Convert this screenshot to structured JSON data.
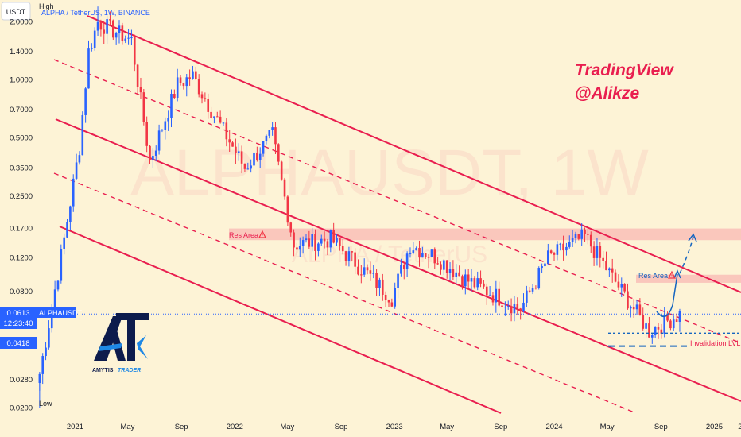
{
  "header": {
    "currency_badge": "USDT",
    "symbol_line": "ALPHA / TetherUS, 1W, BINANCE",
    "high_label": "High",
    "low_label": "Low"
  },
  "watermark": {
    "text": "ALPHAUSDT, 1W",
    "sub_text": "ALPHA / TetherUS"
  },
  "branding": {
    "line1": "TradingView",
    "line2": "@Alikze",
    "logo_letters": "AT",
    "logo_caption_1": "AMYTIS",
    "logo_caption_2": "TRADER"
  },
  "price_panel": {
    "last_price": "0.0613",
    "countdown": "12:23:40",
    "symbol_tag": "ALPHAUSDT",
    "support_price": "0.0418"
  },
  "annotations": {
    "res_area_left": "Res Area",
    "res_area_right": "Res Area",
    "invalidation": "Invalidation LVL"
  },
  "colors": {
    "background": "#fdf3d6",
    "bull": "#2962ff",
    "bear": "#f23645",
    "channel": "#e91e4f",
    "res_zone": "#f7a3a8",
    "branding": "#e91e4f",
    "projection": "#1565c0"
  },
  "chart_data": {
    "type": "candlestick",
    "title": "ALPHA / TetherUS, 1W, BINANCE",
    "y_scale": "log",
    "y_ticks": [
      "2.0000",
      "1.4000",
      "1.0000",
      "0.7000",
      "0.5000",
      "0.3500",
      "0.2500",
      "0.1700",
      "0.1200",
      "0.0800",
      "0.0613",
      "0.0418",
      "0.0280",
      "0.0200"
    ],
    "x_ticks": [
      "2021",
      "May",
      "Sep",
      "2022",
      "May",
      "Sep",
      "2023",
      "May",
      "Sep",
      "2024",
      "May",
      "Sep",
      "2025",
      "2"
    ],
    "x_range": [
      "2020-10-05",
      "2025-03-03"
    ],
    "ylim": [
      0.0188,
      2.45
    ],
    "last_price": 0.0613,
    "resistance_zones": [
      {
        "label": "Res Area",
        "from": 0.148,
        "to": 0.17
      },
      {
        "label": "Res Area",
        "from": 0.089,
        "to": 0.098
      }
    ],
    "invalidation_level": 0.0418,
    "support_level": 0.0488,
    "ohlc_anchors": [
      {
        "date": "2020-10-12",
        "close": 0.03,
        "low": 0.02
      },
      {
        "date": "2020-12-07",
        "close": 0.15
      },
      {
        "date": "2021-01-11",
        "close": 0.45
      },
      {
        "date": "2021-02-01",
        "close": 1.4
      },
      {
        "date": "2021-02-22",
        "close": 2.0,
        "high": 2.4
      },
      {
        "date": "2021-05-10",
        "close": 1.6
      },
      {
        "date": "2021-06-21",
        "close": 0.38
      },
      {
        "date": "2021-08-23",
        "close": 0.95
      },
      {
        "date": "2021-09-27",
        "close": 1.05
      },
      {
        "date": "2021-11-01",
        "close": 0.75
      },
      {
        "date": "2022-01-24",
        "close": 0.35
      },
      {
        "date": "2022-03-28",
        "close": 0.52
      },
      {
        "date": "2022-05-16",
        "close": 0.14
      },
      {
        "date": "2022-08-08",
        "close": 0.15
      },
      {
        "date": "2022-12-26",
        "close": 0.075
      },
      {
        "date": "2023-02-06",
        "close": 0.14
      },
      {
        "date": "2023-04-10",
        "close": 0.12
      },
      {
        "date": "2023-06-12",
        "close": 0.093
      },
      {
        "date": "2023-10-16",
        "close": 0.065
      },
      {
        "date": "2023-12-18",
        "close": 0.12
      },
      {
        "date": "2024-03-11",
        "close": 0.155
      },
      {
        "date": "2024-05-13",
        "close": 0.095
      },
      {
        "date": "2024-08-05",
        "close": 0.05
      },
      {
        "date": "2024-10-14",
        "close": 0.0613
      }
    ]
  }
}
